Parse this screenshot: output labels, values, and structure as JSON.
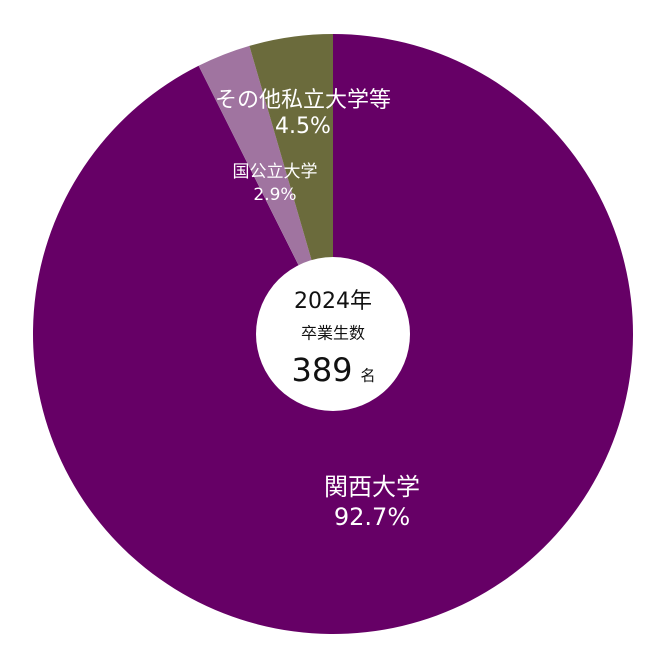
{
  "chart_data": {
    "type": "pie",
    "categories": [
      "関西大学",
      "国公立大学",
      "その他私立大学等"
    ],
    "values": [
      92.7,
      2.9,
      4.5
    ],
    "value_labels": [
      "92.7%",
      "2.9%",
      "4.5%"
    ],
    "colors": [
      "#660066",
      "#a074a0",
      "#6b6b3c"
    ],
    "center": {
      "year": "2024年",
      "label": "卒業生数",
      "total": 389,
      "unit": "名"
    }
  }
}
